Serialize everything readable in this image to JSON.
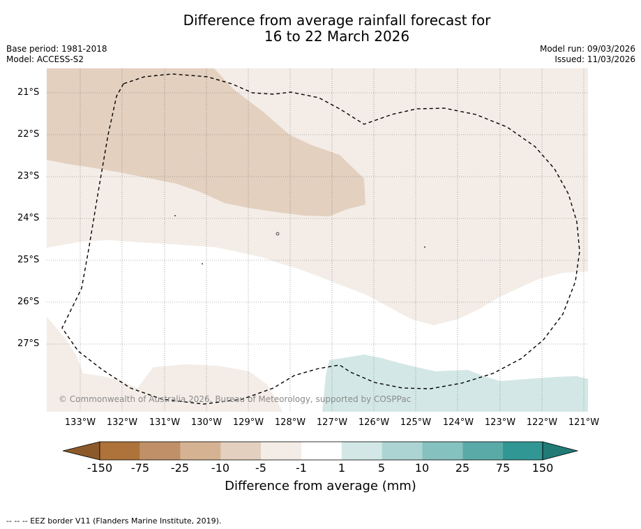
{
  "title_line1": "Difference from average rainfall forecast for",
  "title_line2": "16 to 22 March 2026",
  "base_period": "Base period: 1981-2018",
  "model": "Model: ACCESS-S2",
  "model_run": "Model run: 09/03/2026",
  "issued": "Issued: 11/03/2026",
  "lat_labels": [
    "21°S",
    "22°S",
    "23°S",
    "24°S",
    "25°S",
    "26°S",
    "27°S"
  ],
  "lon_labels": [
    "133°W",
    "132°W",
    "131°W",
    "130°W",
    "129°W",
    "128°W",
    "127°W",
    "126°W",
    "125°W",
    "124°W",
    "123°W",
    "122°W",
    "121°W"
  ],
  "copyright": "© Commonwealth of Australia 2026, Bureau of Meteorology, supported by COSPPac",
  "colorbar": {
    "labels": [
      "-150",
      "-75",
      "-25",
      "-10",
      "-5",
      "-1",
      "1",
      "5",
      "10",
      "25",
      "75",
      "150"
    ],
    "colors": [
      "#8c5a2a",
      "#ad733b",
      "#c09068",
      "#d5b292",
      "#e3d0bf",
      "#f4ede7",
      "#ffffff",
      "#d3e8e6",
      "#acd4d3",
      "#85c1bf",
      "#5aaaa8",
      "#319794",
      "#217a76"
    ],
    "title": "Difference from average (mm)"
  },
  "footer": "--  --  -- EEZ border V11 (Flanders Marine Institute, 2019)."
}
